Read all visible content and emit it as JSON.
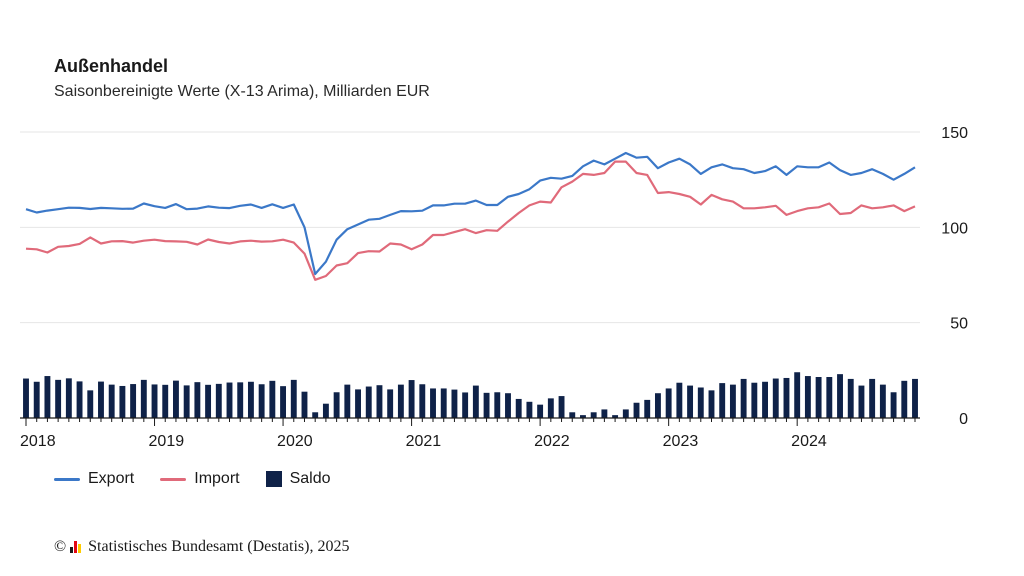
{
  "header": {
    "title": "Außenhandel",
    "subtitle": "Saisonbereinigte Werte (X-13 Arima), Milliarden EUR"
  },
  "legend": {
    "export_label": "Export",
    "import_label": "Import",
    "saldo_label": "Saldo"
  },
  "source": {
    "copyright": "©",
    "text": "Statistisches Bundesamt (Destatis), 2025"
  },
  "colors": {
    "export": "#3b78c8",
    "import": "#e06a7a",
    "saldo": "#0f2248",
    "grid": "#e6e6e6",
    "axis": "#1a1a1a",
    "logo": [
      "#1a1a1a",
      "#e30613",
      "#ffcc00"
    ]
  },
  "chart_data": {
    "type": "line",
    "x_start": "2018-01",
    "x_end": "2024-12",
    "ylim": [
      0,
      150
    ],
    "yticks": [
      0,
      50,
      100,
      150
    ],
    "xticks": [
      "2018",
      "2019",
      "2020",
      "2021",
      "2022",
      "2023",
      "2024"
    ],
    "grid": true,
    "legend_position": "bottom-left",
    "series": [
      {
        "name": "Export",
        "type": "line",
        "values": [
          109.5,
          107.8,
          108.8,
          109.5,
          110.3,
          110.2,
          109.6,
          110.2,
          110,
          109.7,
          109.8,
          112.5,
          111.1,
          110.2,
          112.2,
          109.5,
          109.8,
          111,
          110.3,
          110.1,
          111.3,
          112,
          110.2,
          112.1,
          110.2,
          112,
          100,
          75.5,
          82,
          93.5,
          99,
          101.5,
          104,
          104.5,
          106.5,
          108.5,
          108.4,
          108.7,
          111.5,
          111.5,
          112.4,
          112.4,
          114,
          111.7,
          111.7,
          116,
          117.5,
          120,
          124.5,
          126,
          125.5,
          127,
          132,
          135,
          133,
          136,
          139,
          136.5,
          137,
          131,
          134,
          136,
          133,
          128,
          131.5,
          133,
          131,
          130.5,
          128.5,
          129.5,
          132,
          127.5,
          132,
          131.5,
          131.5,
          134,
          130,
          127.5,
          128.5,
          130.5,
          128,
          125,
          128,
          131.5
        ]
      },
      {
        "name": "Import",
        "type": "line",
        "values": [
          88.8,
          88.5,
          86.8,
          89.8,
          90.2,
          91.3,
          94.7,
          91.5,
          92.7,
          92.8,
          92,
          93,
          93.5,
          92.8,
          92.6,
          92.4,
          91,
          93.6,
          92.3,
          91.5,
          92.6,
          93,
          92.5,
          92.7,
          93.5,
          92,
          86.2,
          72.5,
          74.5,
          80,
          81.2,
          86.5,
          87.5,
          87.3,
          91.5,
          91,
          88.5,
          91,
          96,
          96,
          97.5,
          99,
          97,
          98.5,
          98.2,
          103,
          107.5,
          111.5,
          113.5,
          113,
          121,
          124,
          128,
          127.5,
          128.5,
          134.5,
          134.5,
          128.5,
          127.5,
          118,
          118.5,
          117.5,
          116,
          112,
          117,
          114.7,
          113.5,
          110,
          110,
          110.5,
          111.3,
          106.5,
          108.5,
          110,
          110.5,
          112.5,
          107,
          107.5,
          111.5,
          110,
          110.5,
          111.5,
          108.5,
          111
        ]
      },
      {
        "name": "Saldo",
        "type": "bar",
        "values": [
          20.7,
          19,
          22,
          20,
          20.8,
          19.2,
          14.5,
          19.1,
          17.5,
          16.8,
          17.8,
          20,
          17.6,
          17.4,
          19.6,
          17.1,
          18.8,
          17.4,
          17.9,
          18.6,
          18.7,
          19,
          17.7,
          19.5,
          16.7,
          20,
          13.8,
          3,
          7.5,
          13.5,
          17.5,
          15,
          16.5,
          17.2,
          15,
          17.5,
          19.9,
          17.7,
          15.5,
          15.5,
          14.9,
          13.4,
          17,
          13.2,
          13.5,
          13,
          10,
          8.5,
          7,
          10.3,
          11.5,
          3,
          1.5,
          3,
          4.5,
          1.5,
          4.5,
          8,
          9.5,
          13,
          15.5,
          18.5,
          17,
          16,
          14.5,
          18.3,
          17.5,
          20.5,
          18.5,
          19,
          20.7,
          21,
          24,
          22,
          21.5,
          21.5,
          23,
          20.5,
          17,
          20.5,
          17.5,
          13.5,
          19.5,
          20.5
        ]
      }
    ]
  }
}
